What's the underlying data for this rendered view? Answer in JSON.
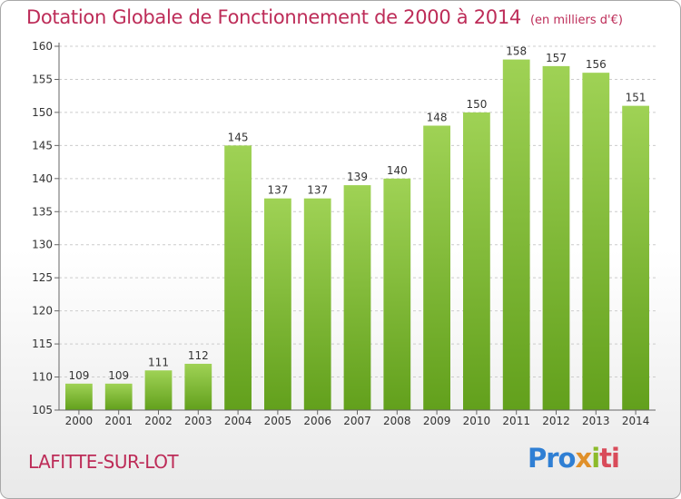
{
  "header": {
    "title": "Dotation Globale de Fonctionnement de 2000 à 2014",
    "subtitle": "(en milliers d'€)"
  },
  "footer": {
    "commune": "LAFITTE-SUR-LOT",
    "logo": [
      "Pro",
      "x",
      "i",
      "ti"
    ]
  },
  "colors": {
    "title": "#bd2c58",
    "bar_light": "#9fd255",
    "bar_dark": "#62a01c",
    "grid": "#cccccc"
  },
  "chart_data": {
    "type": "bar",
    "categories": [
      "2000",
      "2001",
      "2002",
      "2003",
      "2004",
      "2005",
      "2006",
      "2007",
      "2008",
      "2009",
      "2010",
      "2011",
      "2012",
      "2013",
      "2014"
    ],
    "values": [
      109,
      109,
      111,
      112,
      145,
      137,
      137,
      139,
      140,
      148,
      150,
      158,
      157,
      156,
      151
    ],
    "data_labels": [
      "109",
      "109",
      "111",
      "112",
      "145",
      "137",
      "137",
      "139",
      "140",
      "148",
      "150",
      "158",
      "157",
      "156",
      "151"
    ],
    "yticks": [
      105,
      110,
      115,
      120,
      125,
      130,
      135,
      140,
      145,
      150,
      155,
      160
    ],
    "ylim": [
      105,
      160
    ],
    "grid": true,
    "legend": "none"
  }
}
